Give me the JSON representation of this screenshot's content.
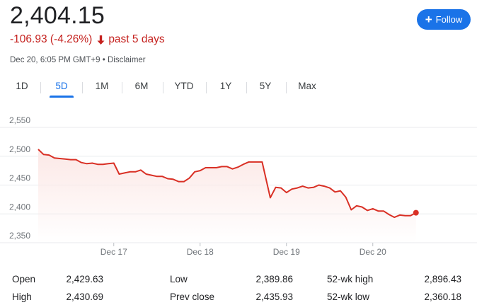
{
  "quote": {
    "price": "2,404.15",
    "change": "-106.93 (-4.26%)",
    "period": "past 5 days",
    "timestamp": "Dec 20, 6:05 PM GMT+9",
    "bullet": "•",
    "disclaimer": "Disclaimer",
    "down_color": "#c5221f"
  },
  "follow": {
    "label": "Follow",
    "icon": "plus-icon",
    "color": "#1a73e8"
  },
  "tabs": [
    {
      "label": "1D",
      "active": false
    },
    {
      "label": "5D",
      "active": true
    },
    {
      "label": "1M",
      "active": false
    },
    {
      "label": "6M",
      "active": false
    },
    {
      "label": "YTD",
      "active": false
    },
    {
      "label": "1Y",
      "active": false
    },
    {
      "label": "5Y",
      "active": false
    },
    {
      "label": "Max",
      "active": false
    }
  ],
  "chart_data": {
    "type": "area",
    "title": "",
    "xlabel": "",
    "ylabel": "",
    "ylim": [
      2350,
      2550
    ],
    "yticks": [
      2350,
      2400,
      2450,
      2500,
      2550
    ],
    "ytick_labels": [
      "2,350",
      "2,400",
      "2,450",
      "2,500",
      "2,550"
    ],
    "xtick_labels": [
      "Dec 17",
      "Dec 18",
      "Dec 19",
      "Dec 20"
    ],
    "xtick_positions": [
      14,
      30,
      46,
      62
    ],
    "xlim": [
      0,
      80
    ],
    "grid": true,
    "line_color": "#d93025",
    "fill_color": "#fce8e6",
    "series": [
      {
        "values": [
          2512,
          2503,
          2502,
          2497,
          2496,
          2495,
          2494,
          2494,
          2489,
          2487,
          2488,
          2486,
          2486,
          2487,
          2488,
          2469,
          2471,
          2473,
          2473,
          2476,
          2469,
          2467,
          2465,
          2465,
          2461,
          2460,
          2456,
          2456,
          2462,
          2473,
          2475,
          2480,
          2480,
          2480,
          2482,
          2482,
          2478,
          2481,
          2486,
          2490,
          2490,
          2490,
          2428,
          2446,
          2445,
          2437,
          2443,
          2445,
          2448,
          2445,
          2446,
          2450,
          2448,
          2445,
          2438,
          2440,
          2429,
          2407,
          2414,
          2412,
          2406,
          2409,
          2405,
          2405,
          2399,
          2394,
          2398,
          2397,
          2397,
          2402
        ],
        "x": [
          0,
          1,
          2,
          3,
          4,
          5,
          6,
          7,
          8,
          9,
          10,
          11,
          12,
          13,
          14,
          15,
          16,
          17,
          18,
          19,
          20,
          21,
          22,
          23,
          24,
          25,
          26,
          27,
          28,
          29,
          30,
          31,
          32,
          33,
          34,
          35,
          36,
          37,
          38,
          39,
          40,
          41.5,
          43,
          44,
          45,
          46,
          47,
          48,
          49,
          50,
          51,
          52,
          53,
          54,
          55,
          56,
          57,
          58,
          59,
          60,
          61,
          62,
          63,
          64,
          65,
          66,
          67,
          68,
          69,
          70
        ]
      }
    ]
  },
  "stats": [
    {
      "label": "Open",
      "value": "2,429.63"
    },
    {
      "label": "High",
      "value": "2,430.69"
    },
    {
      "label": "Low",
      "value": "2,389.86"
    },
    {
      "label": "Prev close",
      "value": "2,435.93"
    },
    {
      "label": "52-wk high",
      "value": "2,896.43"
    },
    {
      "label": "52-wk low",
      "value": "2,360.18"
    }
  ]
}
